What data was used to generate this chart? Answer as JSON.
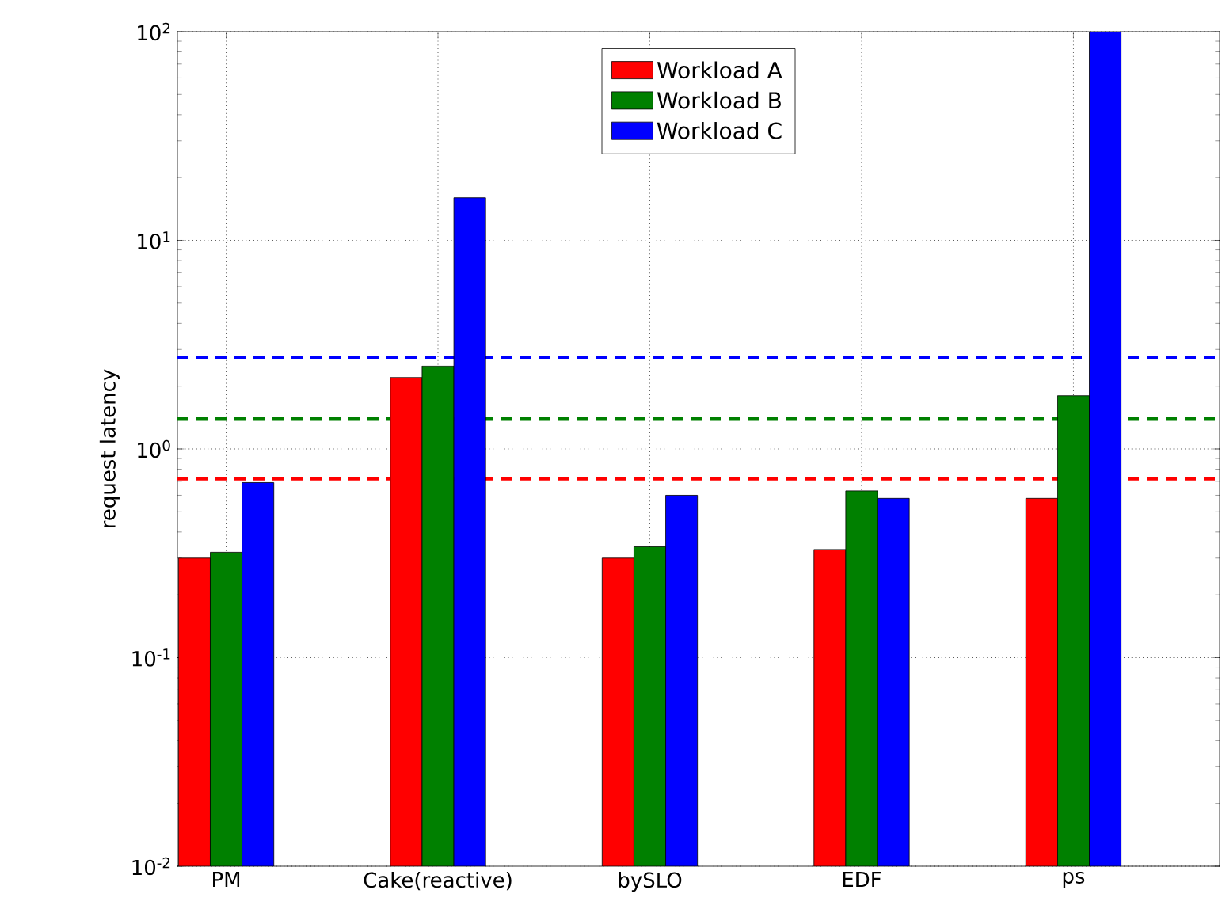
{
  "chart_data": {
    "type": "bar",
    "ylabel": "request latency",
    "log": true,
    "grid": true,
    "legend": "top",
    "categories": [
      "PM",
      "Cake(reactive)",
      "bySLO",
      "EDF",
      "ps"
    ],
    "series": [
      {
        "name": "Workload A",
        "color": "#ff0000",
        "values": [
          0.3,
          2.2,
          0.3,
          0.33,
          0.58
        ]
      },
      {
        "name": "Workload B",
        "color": "#008000",
        "values": [
          0.32,
          2.5,
          0.34,
          0.63,
          1.8
        ]
      },
      {
        "name": "Workload C",
        "color": "#0000ff",
        "values": [
          0.69,
          16,
          0.6,
          0.58,
          100
        ]
      }
    ],
    "ylim": [
      0.01,
      100
    ],
    "yticks": [
      {
        "value": 0.01,
        "label": "10$^{-2}$"
      },
      {
        "value": 0.1,
        "label": "10$^{-1}$"
      },
      {
        "value": 1,
        "label": "10$^{0}$"
      },
      {
        "value": 10,
        "label": "10$^{1}$"
      },
      {
        "value": 100,
        "label": "10$^{2}$"
      }
    ],
    "ref_lines": [
      {
        "axis": "y",
        "value": 2.75,
        "color": "#0000ff",
        "line_style": "dashed"
      },
      {
        "axis": "y",
        "value": 1.39,
        "color": "#008000",
        "line_style": "dashed"
      },
      {
        "axis": "y",
        "value": 0.72,
        "color": "#ff0000",
        "line_style": "dashed"
      }
    ]
  }
}
